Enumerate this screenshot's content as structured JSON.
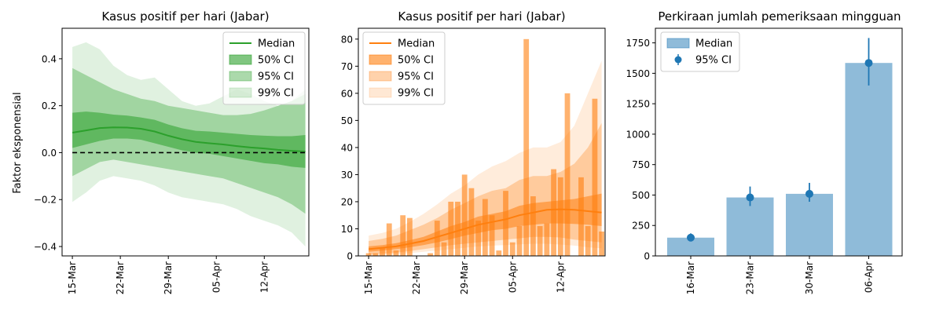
{
  "chart_data": [
    {
      "type": "line",
      "title": "Kasus positif per hari (Jabar)",
      "ylabel": "Faktor eksponensial",
      "ylim": [
        -0.44,
        0.53
      ],
      "yticks": [
        -0.4,
        -0.2,
        0.0,
        0.2,
        0.4
      ],
      "ytick_labels": [
        "−0.4",
        "−0.2",
        "0.0",
        "0.2",
        "0.4"
      ],
      "x_tick_labels": [
        "15-Mar",
        "22-Mar",
        "29-Mar",
        "05-Apr",
        "12-Apr"
      ],
      "x_tick_days": [
        0,
        7,
        14,
        21,
        28
      ],
      "x_range": [
        -1.5,
        34.5
      ],
      "reference_line": 0.0,
      "color": "#2ca02c",
      "legend": [
        "Median",
        "50% CI",
        "95% CI",
        "99% CI"
      ],
      "legend_placement": "top-right",
      "series": [
        {
          "band": "median",
          "x": [
            0,
            2,
            4,
            6,
            8,
            10,
            12,
            14,
            16,
            18,
            20,
            22,
            24,
            26,
            28,
            30,
            32,
            34
          ],
          "y": [
            0.085,
            0.095,
            0.105,
            0.108,
            0.107,
            0.102,
            0.09,
            0.072,
            0.057,
            0.046,
            0.04,
            0.035,
            0.028,
            0.022,
            0.018,
            0.012,
            0.008,
            0.005
          ]
        },
        {
          "band": "50% CI",
          "x": [
            0,
            2,
            4,
            6,
            8,
            10,
            12,
            14,
            16,
            18,
            20,
            22,
            24,
            26,
            28,
            30,
            32,
            34
          ],
          "lower": [
            0.02,
            0.035,
            0.05,
            0.06,
            0.06,
            0.055,
            0.04,
            0.025,
            0.01,
            0.0,
            -0.005,
            -0.015,
            -0.025,
            -0.035,
            -0.045,
            -0.05,
            -0.06,
            -0.065
          ],
          "upper": [
            0.17,
            0.175,
            0.17,
            0.162,
            0.158,
            0.15,
            0.14,
            0.12,
            0.104,
            0.093,
            0.09,
            0.085,
            0.08,
            0.075,
            0.072,
            0.07,
            0.07,
            0.075
          ]
        },
        {
          "band": "95% CI",
          "x": [
            0,
            2,
            4,
            6,
            8,
            10,
            12,
            14,
            16,
            18,
            20,
            22,
            24,
            26,
            28,
            30,
            32,
            34
          ],
          "lower": [
            -0.1,
            -0.07,
            -0.04,
            -0.03,
            -0.04,
            -0.05,
            -0.06,
            -0.07,
            -0.08,
            -0.09,
            -0.1,
            -0.11,
            -0.13,
            -0.15,
            -0.17,
            -0.19,
            -0.22,
            -0.26
          ],
          "upper": [
            0.36,
            0.33,
            0.3,
            0.27,
            0.25,
            0.23,
            0.22,
            0.2,
            0.19,
            0.18,
            0.17,
            0.16,
            0.16,
            0.165,
            0.18,
            0.2,
            0.22,
            0.25
          ]
        },
        {
          "band": "99% CI",
          "x": [
            0,
            2,
            4,
            6,
            8,
            10,
            12,
            14,
            16,
            18,
            20,
            22,
            24,
            26,
            28,
            30,
            32,
            34
          ],
          "lower": [
            -0.21,
            -0.17,
            -0.12,
            -0.1,
            -0.11,
            -0.12,
            -0.14,
            -0.17,
            -0.19,
            -0.2,
            -0.21,
            -0.22,
            -0.24,
            -0.27,
            -0.29,
            -0.31,
            -0.34,
            -0.4
          ],
          "upper": [
            0.45,
            0.47,
            0.44,
            0.37,
            0.33,
            0.31,
            0.32,
            0.27,
            0.22,
            0.2,
            0.21,
            0.24,
            0.27,
            0.25,
            0.22,
            0.2,
            0.22,
            0.27
          ]
        }
      ]
    },
    {
      "type": "bar",
      "title": "Kasus positif per hari (Jabar)",
      "ylim": [
        0,
        84
      ],
      "yticks": [
        0,
        10,
        20,
        30,
        40,
        50,
        60,
        70,
        80
      ],
      "ytick_labels": [
        "0",
        "10",
        "20",
        "30",
        "40",
        "50",
        "60",
        "70",
        "80"
      ],
      "x_tick_labels": [
        "15-Mar",
        "22-Mar",
        "29-Mar",
        "05-Apr",
        "12-Apr"
      ],
      "x_tick_days": [
        0,
        7,
        14,
        21,
        28
      ],
      "x_range": [
        -1.5,
        34.5
      ],
      "color": "#ff7f0e",
      "legend": [
        "Median",
        "50% CI",
        "95% CI",
        "99% CI"
      ],
      "legend_placement": "top-left",
      "bars": {
        "x": [
          0,
          1,
          2,
          3,
          4,
          5,
          6,
          7,
          8,
          9,
          10,
          11,
          12,
          13,
          14,
          15,
          16,
          17,
          18,
          19,
          20,
          21,
          22,
          23,
          24,
          25,
          26,
          27,
          28,
          29,
          30,
          31,
          32,
          33,
          34
        ],
        "values": [
          1,
          1,
          3,
          12,
          2,
          15,
          14,
          0,
          0,
          1,
          13,
          5,
          20,
          20,
          30,
          25,
          13,
          21,
          15,
          2,
          24,
          5,
          11,
          80,
          22,
          11,
          12,
          32,
          29,
          60,
          0,
          29,
          11,
          58,
          9
        ]
      },
      "series": [
        {
          "band": "median",
          "x": [
            0,
            2,
            4,
            6,
            8,
            10,
            12,
            14,
            16,
            18,
            20,
            22,
            24,
            26,
            28,
            30,
            32,
            34
          ],
          "y": [
            2.5,
            3,
            3.5,
            4.5,
            5.5,
            7,
            8.5,
            10,
            11.5,
            12.5,
            13.5,
            15,
            16,
            17,
            17.2,
            17,
            16.5,
            16
          ]
        },
        {
          "band": "50% CI",
          "x": [
            0,
            2,
            4,
            6,
            8,
            10,
            12,
            14,
            16,
            18,
            20,
            22,
            24,
            26,
            28,
            30,
            32,
            34
          ],
          "lower": [
            1.5,
            2,
            2.5,
            3.2,
            4,
            5,
            6.2,
            7.5,
            8.5,
            9.5,
            10,
            11,
            11.5,
            12,
            12,
            11.8,
            11.5,
            11
          ],
          "upper": [
            3.5,
            4,
            4.7,
            5.8,
            7,
            9,
            11,
            12.5,
            14.5,
            15.5,
            16.5,
            18.5,
            19.5,
            20,
            20.5,
            21,
            22,
            23
          ]
        },
        {
          "band": "95% CI",
          "x": [
            0,
            2,
            4,
            6,
            8,
            10,
            12,
            14,
            16,
            18,
            20,
            22,
            24,
            26,
            28,
            30,
            32,
            34
          ],
          "lower": [
            0.5,
            0.8,
            1.2,
            1.8,
            2.5,
            3.2,
            4,
            4.5,
            5,
            5.5,
            6,
            6.5,
            7,
            7,
            6.8,
            6,
            5.5,
            5
          ],
          "upper": [
            5.5,
            6.3,
            7.5,
            9.5,
            11.5,
            14,
            17,
            19.5,
            22,
            24,
            25,
            28,
            29.5,
            29.5,
            31,
            34,
            40,
            49
          ]
        },
        {
          "band": "99% CI",
          "x": [
            0,
            2,
            4,
            6,
            8,
            10,
            12,
            14,
            16,
            18,
            20,
            22,
            24,
            26,
            28,
            30,
            32,
            34
          ],
          "lower": [
            0,
            0.3,
            0.6,
            1,
            1.5,
            2,
            2.5,
            3,
            3.5,
            3.8,
            4,
            4.3,
            4.5,
            4.5,
            4.2,
            3.8,
            3.2,
            2.8
          ],
          "upper": [
            7.5,
            8.5,
            10,
            12.5,
            15.5,
            19,
            23,
            26,
            30,
            33,
            35,
            38,
            40,
            40,
            42,
            48,
            60,
            72
          ]
        }
      ]
    },
    {
      "type": "bar",
      "title": "Perkiraan jumlah pemeriksaan mingguan",
      "ylim": [
        0,
        1870
      ],
      "yticks": [
        0,
        250,
        500,
        750,
        1000,
        1250,
        1500,
        1750
      ],
      "ytick_labels": [
        "0",
        "250",
        "500",
        "750",
        "1000",
        "1250",
        "1500",
        "1750"
      ],
      "categories": [
        "16-Mar",
        "23-Mar",
        "30-Mar",
        "06-Apr"
      ],
      "values": [
        150,
        480,
        510,
        1585
      ],
      "color": "#1f77b4",
      "errors": {
        "low": [
          125,
          410,
          445,
          1400
        ],
        "high": [
          185,
          570,
          600,
          1790
        ]
      },
      "legend": [
        "Median",
        "95% CI"
      ],
      "legend_placement": "top-left"
    }
  ]
}
